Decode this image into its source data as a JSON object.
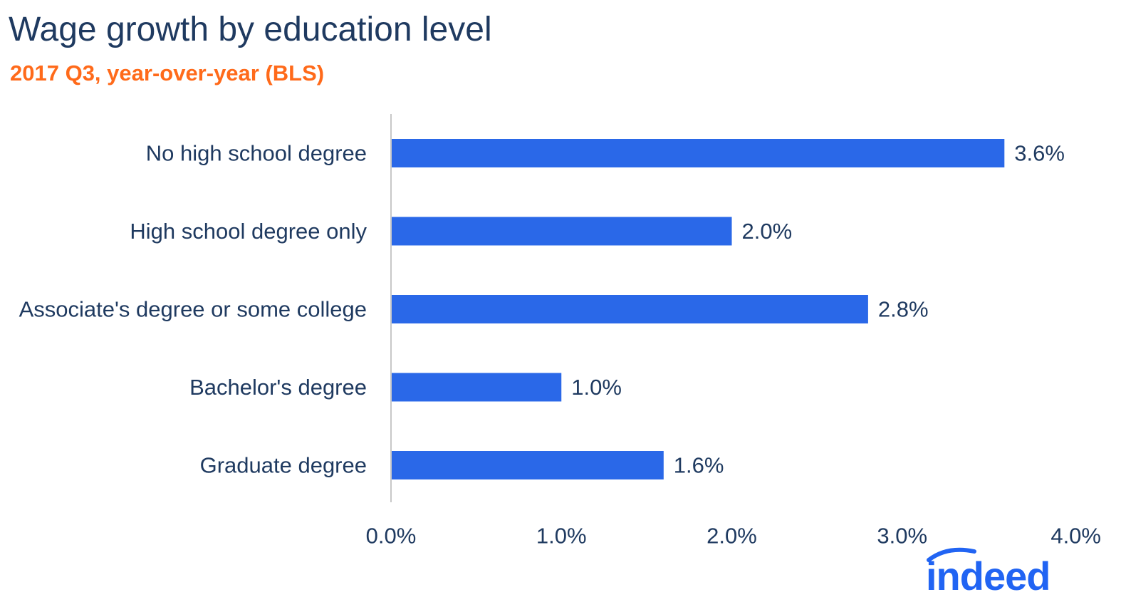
{
  "header": {
    "title": "Wage growth by education level",
    "subtitle": "2017 Q3, year-over-year (BLS)"
  },
  "colors": {
    "title": "#1f3a60",
    "subtitle": "#ff6a1a",
    "bar": "#2a68e8",
    "axis": "#c8c8c8",
    "text": "#1f3a60",
    "logo": "#2164f3"
  },
  "chart_data": {
    "type": "bar",
    "orientation": "horizontal",
    "categories": [
      "No high school degree",
      "High school degree only",
      "Associate's degree or some college",
      "Bachelor's degree",
      "Graduate degree"
    ],
    "values": [
      3.6,
      2.0,
      2.8,
      1.0,
      1.6
    ],
    "value_labels": [
      "3.6%",
      "2.0%",
      "2.8%",
      "1.0%",
      "1.6%"
    ],
    "xlim": [
      0,
      4.0
    ],
    "xticks": [
      0,
      1.0,
      2.0,
      3.0,
      4.0
    ],
    "xtick_labels": [
      "0.0%",
      "1.0%",
      "2.0%",
      "3.0%",
      "4.0%"
    ],
    "grid": false
  },
  "logo": {
    "text": "indeed",
    "icon": "indeed-arc-icon"
  }
}
